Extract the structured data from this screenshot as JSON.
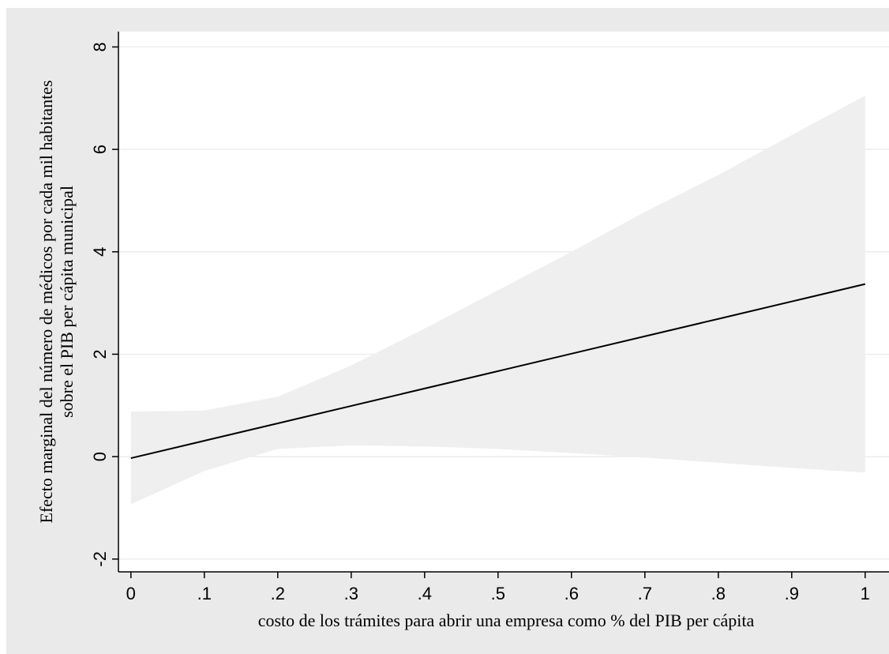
{
  "chart_data": {
    "type": "line",
    "title": "",
    "xlabel": "costo de los trámites para abrir una empresa como % del PIB per cápita",
    "ylabel_lines": [
      "Efecto marginal del número de médicos por cada mil habitantes",
      "sobre el PIB per cápita municipal"
    ],
    "xlim": [
      -0.017,
      1.04
    ],
    "ylim": [
      -2.25,
      8.3
    ],
    "x_ticks": [
      0,
      0.1,
      0.2,
      0.3,
      0.4,
      0.5,
      0.6,
      0.7,
      0.8,
      0.9,
      1
    ],
    "x_tick_labels": [
      "0",
      ".1",
      ".2",
      ".3",
      ".4",
      ".5",
      ".6",
      ".7",
      ".8",
      ".9",
      "1"
    ],
    "y_ticks": [
      -2,
      0,
      2,
      4,
      6,
      8
    ],
    "y_tick_labels": [
      "-2",
      "0",
      "2",
      "4",
      "6",
      "8"
    ],
    "grid": true,
    "legend": "none",
    "series": [
      {
        "x": [
          0,
          0.1,
          0.2,
          0.3,
          0.4,
          0.5,
          0.6,
          0.7,
          0.8,
          0.9,
          1
        ],
        "values": [
          -0.03,
          0.31,
          0.65,
          0.99,
          1.33,
          1.67,
          2.01,
          2.35,
          2.69,
          3.03,
          3.37
        ]
      }
    ],
    "confidence_band": {
      "x": [
        0,
        0.1,
        0.2,
        0.3,
        0.4,
        0.5,
        0.6,
        0.7,
        0.8,
        0.9,
        1
      ],
      "upper": [
        0.88,
        0.9,
        1.17,
        1.78,
        2.5,
        3.25,
        4.0,
        4.78,
        5.5,
        6.28,
        7.05
      ],
      "lower": [
        -0.93,
        -0.28,
        0.15,
        0.22,
        0.2,
        0.15,
        0.07,
        -0.02,
        -0.12,
        -0.22,
        -0.31
      ]
    },
    "colors": {
      "background": "#eaeaea",
      "plot_area": "#ffffff",
      "band": "#efefef",
      "line": "#000000",
      "grid": "#e9e9e9"
    }
  }
}
